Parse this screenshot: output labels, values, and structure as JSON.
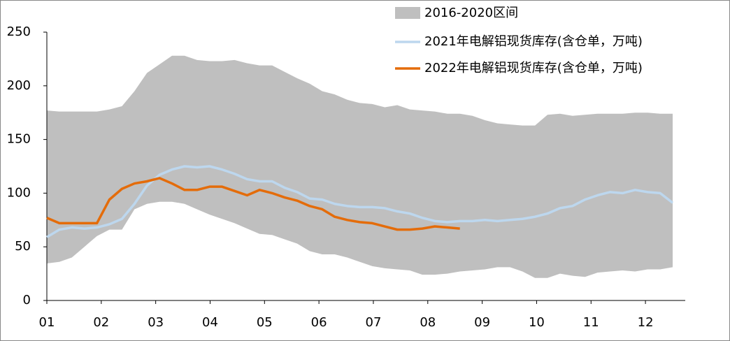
{
  "chart_data": {
    "type": "line",
    "x": [
      1,
      1.23,
      1.46,
      1.69,
      1.92,
      2.15,
      2.38,
      2.61,
      2.84,
      3.07,
      3.3,
      3.53,
      3.76,
      3.99,
      4.22,
      4.45,
      4.68,
      4.91,
      5.14,
      5.37,
      5.6,
      5.83,
      6.06,
      6.29,
      6.52,
      6.75,
      6.98,
      7.21,
      7.44,
      7.67,
      7.9,
      8.13,
      8.36,
      8.59,
      8.82,
      9.05,
      9.28,
      9.51,
      9.74,
      9.97,
      10.2,
      10.43,
      10.66,
      10.89,
      11.12,
      11.35,
      11.58,
      11.81,
      12.04,
      12.27,
      12.5
    ],
    "band": {
      "name": "2016-2020区间",
      "color": "#bfbfbf",
      "upper": [
        177,
        176,
        176,
        176,
        176,
        178,
        181,
        195,
        212,
        220,
        228,
        228,
        224,
        223,
        223,
        224,
        221,
        219,
        219,
        213,
        207,
        202,
        195,
        192,
        187,
        184,
        183,
        180,
        182,
        178,
        177,
        176,
        174,
        174,
        172,
        168,
        165,
        164,
        163,
        163,
        173,
        174,
        172,
        173,
        174,
        174,
        174,
        175,
        175,
        174,
        174
      ],
      "lower": [
        34.5,
        36,
        40,
        50,
        60,
        66,
        66,
        85,
        90,
        92,
        92,
        90,
        85,
        80,
        76,
        72,
        67,
        62,
        61,
        57,
        53,
        46,
        43,
        43,
        40,
        36,
        32,
        30,
        29,
        28,
        24,
        24,
        25,
        27,
        28,
        29,
        31,
        31,
        27,
        21,
        21,
        25,
        23,
        22,
        26,
        27,
        28,
        27,
        29,
        29,
        31
      ]
    },
    "series": [
      {
        "name": "2021年电解铝现货库存(含仓单，万吨)",
        "color": "#bdd7ee",
        "values": [
          59,
          66,
          68,
          67,
          68,
          71,
          76,
          90,
          107,
          117,
          122,
          125,
          124,
          125,
          122,
          118,
          113,
          111,
          111,
          105,
          101,
          95,
          94,
          90,
          88,
          87,
          87,
          86,
          83,
          81,
          77,
          74,
          73,
          74,
          74,
          75,
          74,
          75,
          76,
          78,
          81,
          86,
          88,
          94,
          98,
          101,
          100,
          103,
          101,
          100,
          91
        ]
      },
      {
        "name": "2022年电解铝现货库存(含仓单，万吨)",
        "color": "#e46c0a",
        "values": [
          77,
          72,
          72,
          72,
          72,
          94,
          104,
          109,
          111,
          114,
          109,
          103,
          103,
          106,
          106,
          102,
          98,
          103,
          100,
          96,
          93,
          88,
          85,
          78,
          75,
          73,
          72,
          69,
          66,
          66,
          67,
          69,
          68,
          67,
          null,
          null,
          null,
          null,
          null,
          null,
          null,
          null,
          null,
          null,
          null,
          null,
          null,
          null,
          null,
          null,
          null
        ]
      }
    ],
    "xlim": [
      1,
      12.5
    ],
    "xticks": [
      {
        "value": 1,
        "label": "01"
      },
      {
        "value": 2,
        "label": "02"
      },
      {
        "value": 3,
        "label": "03"
      },
      {
        "value": 4,
        "label": "04"
      },
      {
        "value": 5,
        "label": "05"
      },
      {
        "value": 6,
        "label": "06"
      },
      {
        "value": 7,
        "label": "07"
      },
      {
        "value": 8,
        "label": "08"
      },
      {
        "value": 9,
        "label": "09"
      },
      10,
      11,
      12
    ],
    "ylim": [
      0,
      250
    ],
    "yticks": [
      0,
      50,
      100,
      150,
      200,
      250
    ],
    "grid": false,
    "legend": "top-right"
  }
}
